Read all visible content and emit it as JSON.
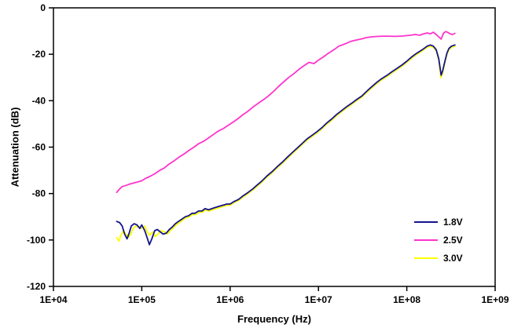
{
  "chart_data": {
    "type": "line",
    "title": "",
    "xlabel": "Frequency (Hz)",
    "ylabel": "Attenuation (dB)",
    "x_scale": "log",
    "xlim": [
      10000,
      1000000000
    ],
    "ylim": [
      -120,
      0
    ],
    "grid": false,
    "legend_position": "bottom-right",
    "x_ticks": [
      {
        "value": 10000,
        "label": "1E+04"
      },
      {
        "value": 100000,
        "label": "1E+05"
      },
      {
        "value": 1000000,
        "label": "1E+06"
      },
      {
        "value": 10000000,
        "label": "1E+07"
      },
      {
        "value": 100000000,
        "label": "1E+08"
      },
      {
        "value": 1000000000,
        "label": "1E+09"
      }
    ],
    "y_ticks": [
      {
        "value": 0,
        "label": "0"
      },
      {
        "value": -20,
        "label": "-20"
      },
      {
        "value": -40,
        "label": "-40"
      },
      {
        "value": -60,
        "label": "-60"
      },
      {
        "value": -80,
        "label": "-80"
      },
      {
        "value": -100,
        "label": "-100"
      },
      {
        "value": -120,
        "label": "-120"
      }
    ],
    "series": [
      {
        "name": "1.8V",
        "color": "#14148c",
        "points": [
          [
            52000,
            -92
          ],
          [
            56000,
            -92.5
          ],
          [
            60000,
            -94
          ],
          [
            64000,
            -97.5
          ],
          [
            68000,
            -99.5
          ],
          [
            72000,
            -97
          ],
          [
            76000,
            -94
          ],
          [
            82000,
            -93
          ],
          [
            88000,
            -93.5
          ],
          [
            95000,
            -95
          ],
          [
            100000,
            -93.5
          ],
          [
            108000,
            -96
          ],
          [
            115000,
            -99
          ],
          [
            122000,
            -102
          ],
          [
            130000,
            -99.5
          ],
          [
            140000,
            -96
          ],
          [
            150000,
            -95.5
          ],
          [
            162000,
            -96.5
          ],
          [
            175000,
            -97.5
          ],
          [
            190000,
            -97
          ],
          [
            205000,
            -95.5
          ],
          [
            220000,
            -94.5
          ],
          [
            240000,
            -93
          ],
          [
            260000,
            -92
          ],
          [
            285000,
            -91
          ],
          [
            310000,
            -90
          ],
          [
            340000,
            -89.5
          ],
          [
            370000,
            -88.5
          ],
          [
            400000,
            -88.5
          ],
          [
            440000,
            -87.5
          ],
          [
            480000,
            -87.5
          ],
          [
            520000,
            -86.5
          ],
          [
            570000,
            -87
          ],
          [
            620000,
            -86.5
          ],
          [
            680000,
            -86
          ],
          [
            750000,
            -85.5
          ],
          [
            830000,
            -85
          ],
          [
            920000,
            -84.5
          ],
          [
            1000000,
            -84.5
          ],
          [
            1100000,
            -83.5
          ],
          [
            1250000,
            -82.5
          ],
          [
            1400000,
            -81
          ],
          [
            1600000,
            -79.5
          ],
          [
            1800000,
            -78
          ],
          [
            2000000,
            -76.5
          ],
          [
            2300000,
            -74.5
          ],
          [
            2600000,
            -72.5
          ],
          [
            3000000,
            -70.5
          ],
          [
            3400000,
            -68.5
          ],
          [
            3900000,
            -66.5
          ],
          [
            4400000,
            -64.5
          ],
          [
            5000000,
            -62.5
          ],
          [
            5700000,
            -60.5
          ],
          [
            6500000,
            -58.5
          ],
          [
            7400000,
            -56.5
          ],
          [
            8400000,
            -55
          ],
          [
            9500000,
            -53.5
          ],
          [
            11000000,
            -51.5
          ],
          [
            12500000,
            -49.5
          ],
          [
            14000000,
            -48
          ],
          [
            16000000,
            -46
          ],
          [
            18000000,
            -44.5
          ],
          [
            21000000,
            -42.5
          ],
          [
            24000000,
            -41
          ],
          [
            27000000,
            -39.5
          ],
          [
            31000000,
            -38
          ],
          [
            35000000,
            -36
          ],
          [
            40000000,
            -34
          ],
          [
            46000000,
            -32
          ],
          [
            52000000,
            -30.5
          ],
          [
            60000000,
            -29
          ],
          [
            68000000,
            -27.5
          ],
          [
            78000000,
            -26
          ],
          [
            89000000,
            -24.5
          ],
          [
            100000000,
            -23
          ],
          [
            115000000,
            -21
          ],
          [
            130000000,
            -19.5
          ],
          [
            150000000,
            -18
          ],
          [
            170000000,
            -16.5
          ],
          [
            185000000,
            -16
          ],
          [
            200000000,
            -16.5
          ],
          [
            215000000,
            -18
          ],
          [
            230000000,
            -22
          ],
          [
            245000000,
            -29
          ],
          [
            255000000,
            -27
          ],
          [
            270000000,
            -23
          ],
          [
            285000000,
            -19.5
          ],
          [
            300000000,
            -17.5
          ],
          [
            320000000,
            -16.5
          ],
          [
            350000000,
            -16
          ]
        ]
      },
      {
        "name": "2.5V",
        "color": "#ff33cc",
        "points": [
          [
            52000,
            -79.5
          ],
          [
            56000,
            -78
          ],
          [
            60000,
            -77
          ],
          [
            66000,
            -76.5
          ],
          [
            72000,
            -76
          ],
          [
            80000,
            -75.5
          ],
          [
            90000,
            -75
          ],
          [
            100000,
            -74.5
          ],
          [
            110000,
            -73.5
          ],
          [
            125000,
            -72.5
          ],
          [
            140000,
            -71.5
          ],
          [
            160000,
            -70
          ],
          [
            180000,
            -69
          ],
          [
            200000,
            -67.5
          ],
          [
            230000,
            -66
          ],
          [
            260000,
            -64.5
          ],
          [
            300000,
            -63
          ],
          [
            340000,
            -61.5
          ],
          [
            390000,
            -60
          ],
          [
            440000,
            -58.5
          ],
          [
            500000,
            -57.5
          ],
          [
            570000,
            -56
          ],
          [
            650000,
            -54.5
          ],
          [
            740000,
            -53
          ],
          [
            840000,
            -52
          ],
          [
            960000,
            -50.5
          ],
          [
            1100000,
            -49
          ],
          [
            1250000,
            -47.5
          ],
          [
            1400000,
            -46
          ],
          [
            1600000,
            -44.5
          ],
          [
            1850000,
            -42.5
          ],
          [
            2100000,
            -41
          ],
          [
            2400000,
            -39.5
          ],
          [
            2700000,
            -38
          ],
          [
            3100000,
            -36
          ],
          [
            3500000,
            -34
          ],
          [
            4000000,
            -32
          ],
          [
            4600000,
            -30
          ],
          [
            5200000,
            -28.5
          ],
          [
            6000000,
            -26.5
          ],
          [
            6800000,
            -25
          ],
          [
            7800000,
            -23.5
          ],
          [
            8900000,
            -24
          ],
          [
            10000000,
            -22.5
          ],
          [
            11500000,
            -21
          ],
          [
            13000000,
            -19.5
          ],
          [
            15000000,
            -18
          ],
          [
            17000000,
            -16.5
          ],
          [
            20000000,
            -15.5
          ],
          [
            23000000,
            -14.5
          ],
          [
            26000000,
            -14
          ],
          [
            30000000,
            -13.5
          ],
          [
            35000000,
            -12.8
          ],
          [
            40000000,
            -12.5
          ],
          [
            47000000,
            -12.3
          ],
          [
            55000000,
            -12.2
          ],
          [
            63000000,
            -12.2
          ],
          [
            73000000,
            -12.3
          ],
          [
            84000000,
            -12.2
          ],
          [
            97000000,
            -12
          ],
          [
            110000000,
            -11.8
          ],
          [
            125000000,
            -11.5
          ],
          [
            140000000,
            -11.8
          ],
          [
            155000000,
            -11.2
          ],
          [
            170000000,
            -10.8
          ],
          [
            185000000,
            -11.2
          ],
          [
            200000000,
            -10.5
          ],
          [
            215000000,
            -11.5
          ],
          [
            230000000,
            -12.5
          ],
          [
            245000000,
            -13.5
          ],
          [
            260000000,
            -11
          ],
          [
            275000000,
            -10.2
          ],
          [
            290000000,
            -10.5
          ],
          [
            310000000,
            -11.2
          ],
          [
            330000000,
            -11.5
          ],
          [
            350000000,
            -11
          ]
        ]
      },
      {
        "name": "3.0V",
        "color": "#ffff00",
        "points": [
          [
            52000,
            -99
          ],
          [
            55000,
            -100.5
          ],
          [
            58000,
            -98
          ],
          [
            62000,
            -96
          ],
          [
            66000,
            -97.5
          ],
          [
            70000,
            -99
          ],
          [
            75000,
            -97.5
          ],
          [
            80000,
            -95
          ],
          [
            86000,
            -94
          ],
          [
            93000,
            -94.5
          ],
          [
            100000,
            -95
          ],
          [
            108000,
            -94
          ],
          [
            115000,
            -96.5
          ],
          [
            123000,
            -98
          ],
          [
            132000,
            -96.5
          ],
          [
            142000,
            -98.5
          ],
          [
            152000,
            -97.5
          ],
          [
            165000,
            -96
          ],
          [
            180000,
            -96.5
          ],
          [
            195000,
            -97.5
          ],
          [
            210000,
            -96
          ],
          [
            225000,
            -95
          ],
          [
            245000,
            -93.5
          ],
          [
            265000,
            -92.5
          ],
          [
            290000,
            -91.5
          ],
          [
            315000,
            -90.5
          ],
          [
            345000,
            -90
          ],
          [
            375000,
            -89
          ],
          [
            410000,
            -89
          ],
          [
            450000,
            -88
          ],
          [
            490000,
            -88
          ],
          [
            530000,
            -87
          ],
          [
            580000,
            -87.5
          ],
          [
            630000,
            -87
          ],
          [
            690000,
            -86.5
          ],
          [
            760000,
            -86
          ],
          [
            840000,
            -85.5
          ],
          [
            930000,
            -85
          ],
          [
            1000000,
            -85
          ],
          [
            1100000,
            -84
          ],
          [
            1250000,
            -83
          ],
          [
            1400000,
            -81.5
          ],
          [
            1600000,
            -80
          ],
          [
            1800000,
            -78.5
          ],
          [
            2000000,
            -77
          ],
          [
            2300000,
            -75
          ],
          [
            2600000,
            -73
          ],
          [
            3000000,
            -71
          ],
          [
            3400000,
            -69
          ],
          [
            3900000,
            -67
          ],
          [
            4400000,
            -65
          ],
          [
            5000000,
            -63
          ],
          [
            5700000,
            -61
          ],
          [
            6500000,
            -59
          ],
          [
            7400000,
            -57
          ],
          [
            8400000,
            -55.5
          ],
          [
            9500000,
            -54
          ],
          [
            11000000,
            -52
          ],
          [
            12500000,
            -50
          ],
          [
            14000000,
            -48.5
          ],
          [
            16000000,
            -46.5
          ],
          [
            18000000,
            -45
          ],
          [
            21000000,
            -43
          ],
          [
            24000000,
            -41.5
          ],
          [
            27000000,
            -40
          ],
          [
            31000000,
            -38.5
          ],
          [
            35000000,
            -36.5
          ],
          [
            40000000,
            -34.5
          ],
          [
            46000000,
            -32.5
          ],
          [
            52000000,
            -31
          ],
          [
            60000000,
            -29.5
          ],
          [
            68000000,
            -28
          ],
          [
            78000000,
            -26.5
          ],
          [
            89000000,
            -25
          ],
          [
            100000000,
            -23.5
          ],
          [
            115000000,
            -21.5
          ],
          [
            130000000,
            -20
          ],
          [
            150000000,
            -18.5
          ],
          [
            170000000,
            -17
          ],
          [
            185000000,
            -16.5
          ],
          [
            200000000,
            -17
          ],
          [
            215000000,
            -18.5
          ],
          [
            230000000,
            -22.5
          ],
          [
            243000000,
            -30
          ],
          [
            255000000,
            -28
          ],
          [
            270000000,
            -23.5
          ],
          [
            285000000,
            -20
          ],
          [
            300000000,
            -18
          ],
          [
            320000000,
            -17
          ],
          [
            350000000,
            -16.5
          ]
        ]
      }
    ]
  }
}
